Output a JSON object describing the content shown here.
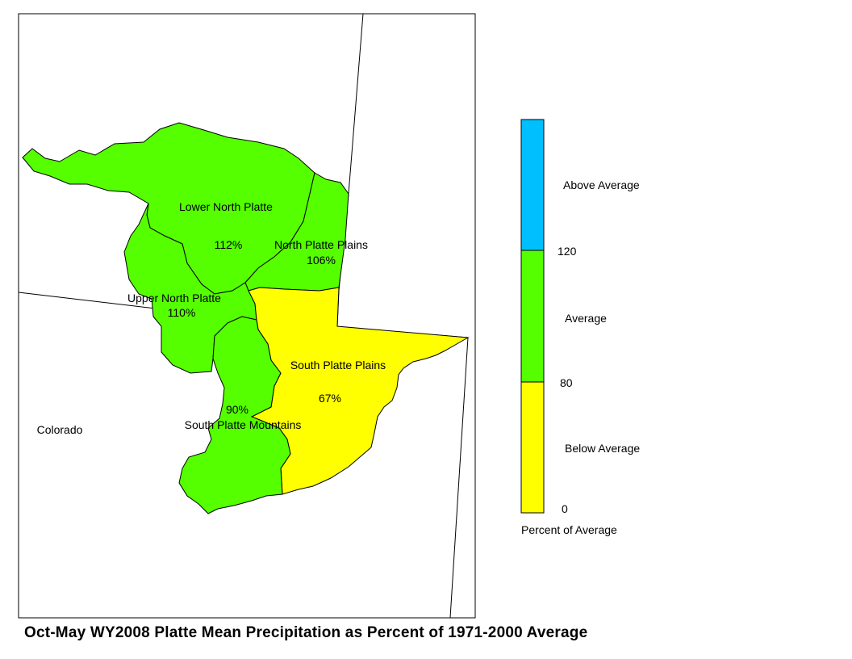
{
  "title": "Oct-May WY2008 Platte Mean Precipitation as Percent of 1971-2000 Average",
  "state_label": "Colorado",
  "colors": {
    "below": "#ffff00",
    "average": "#55ff00",
    "above": "#00bfff",
    "outline": "#000000"
  },
  "regions": [
    {
      "name": "Lower North Platte",
      "percent": "112%",
      "category": "average"
    },
    {
      "name": "North Platte Plains",
      "percent": "106%",
      "category": "average"
    },
    {
      "name": "Upper North Platte",
      "percent": "110%",
      "category": "average"
    },
    {
      "name": "South Platte Plains",
      "percent": "67%",
      "category": "below"
    },
    {
      "name": "South Platte Mountains",
      "percent": "90%",
      "category": "average"
    }
  ],
  "legend": {
    "title": "Percent of Average",
    "bins": [
      {
        "label": "Above Average",
        "color": "#00bfff",
        "from": 120,
        "to": null
      },
      {
        "label": "Average",
        "color": "#55ff00",
        "from": 80,
        "to": 120
      },
      {
        "label": "Below Average",
        "color": "#ffff00",
        "from": 0,
        "to": 80
      }
    ],
    "ticks": [
      "120",
      "80",
      "0"
    ]
  }
}
